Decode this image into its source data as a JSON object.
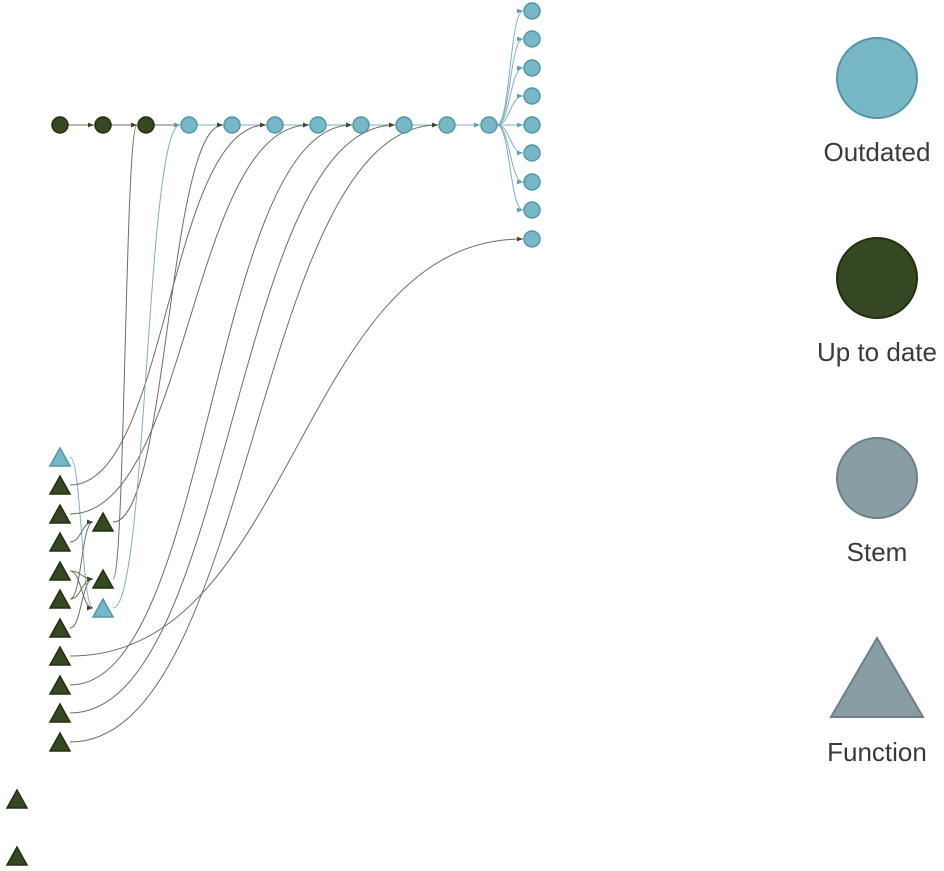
{
  "colors": {
    "outdated": "#78b7c5",
    "outdated_stroke": "#4f97a8",
    "up_to_date": "#354823",
    "up_to_date_stroke": "#22300f",
    "stem": "#899da4",
    "stem_stroke": "#6b8088",
    "edge_dark": "#6d7060",
    "edge_blue": "#7fb0bf"
  },
  "legend": [
    {
      "id": "outdated",
      "label": "Outdated",
      "shape": "circle",
      "status": "outdated"
    },
    {
      "id": "up-to-date",
      "label": "Up to date",
      "shape": "circle",
      "status": "up_to_date"
    },
    {
      "id": "stem",
      "label": "Stem",
      "shape": "circle",
      "status": "stem"
    },
    {
      "id": "function",
      "label": "Function",
      "shape": "triangle",
      "status": "stem"
    }
  ],
  "nodes": [
    {
      "id": "s1",
      "shape": "circle",
      "status": "up_to_date"
    },
    {
      "id": "s2",
      "shape": "circle",
      "status": "up_to_date"
    },
    {
      "id": "s3",
      "shape": "circle",
      "status": "up_to_date"
    },
    {
      "id": "s4",
      "shape": "circle",
      "status": "outdated"
    },
    {
      "id": "s5",
      "shape": "circle",
      "status": "outdated"
    },
    {
      "id": "s6",
      "shape": "circle",
      "status": "outdated"
    },
    {
      "id": "s7",
      "shape": "circle",
      "status": "outdated"
    },
    {
      "id": "s8",
      "shape": "circle",
      "status": "outdated"
    },
    {
      "id": "s9",
      "shape": "circle",
      "status": "outdated"
    },
    {
      "id": "s10",
      "shape": "circle",
      "status": "outdated"
    },
    {
      "id": "s11",
      "shape": "circle",
      "status": "outdated"
    },
    {
      "id": "o1",
      "shape": "circle",
      "status": "outdated"
    },
    {
      "id": "o2",
      "shape": "circle",
      "status": "outdated"
    },
    {
      "id": "o3",
      "shape": "circle",
      "status": "outdated"
    },
    {
      "id": "o4",
      "shape": "circle",
      "status": "outdated"
    },
    {
      "id": "o5",
      "shape": "circle",
      "status": "outdated"
    },
    {
      "id": "o6",
      "shape": "circle",
      "status": "outdated"
    },
    {
      "id": "o7",
      "shape": "circle",
      "status": "outdated"
    },
    {
      "id": "o8",
      "shape": "circle",
      "status": "outdated"
    },
    {
      "id": "o9",
      "shape": "circle",
      "status": "outdated"
    },
    {
      "id": "f0",
      "shape": "triangle",
      "status": "outdated"
    },
    {
      "id": "f1",
      "shape": "triangle",
      "status": "up_to_date"
    },
    {
      "id": "f2",
      "shape": "triangle",
      "status": "up_to_date"
    },
    {
      "id": "f3",
      "shape": "triangle",
      "status": "up_to_date"
    },
    {
      "id": "f4",
      "shape": "triangle",
      "status": "up_to_date"
    },
    {
      "id": "f5",
      "shape": "triangle",
      "status": "up_to_date"
    },
    {
      "id": "f6",
      "shape": "triangle",
      "status": "up_to_date"
    },
    {
      "id": "f7",
      "shape": "triangle",
      "status": "up_to_date"
    },
    {
      "id": "f8",
      "shape": "triangle",
      "status": "up_to_date"
    },
    {
      "id": "f9",
      "shape": "triangle",
      "status": "up_to_date"
    },
    {
      "id": "f10",
      "shape": "triangle",
      "status": "up_to_date"
    },
    {
      "id": "m1",
      "shape": "triangle",
      "status": "up_to_date"
    },
    {
      "id": "m2",
      "shape": "triangle",
      "status": "up_to_date"
    },
    {
      "id": "m3",
      "shape": "triangle",
      "status": "outdated"
    },
    {
      "id": "i1",
      "shape": "triangle",
      "status": "up_to_date"
    },
    {
      "id": "i2",
      "shape": "triangle",
      "status": "up_to_date"
    }
  ],
  "edges": [
    {
      "from": "s1",
      "to": "s2",
      "status": "up_to_date"
    },
    {
      "from": "s2",
      "to": "s3",
      "status": "up_to_date"
    },
    {
      "from": "s3",
      "to": "s4",
      "status": "up_to_date"
    },
    {
      "from": "s4",
      "to": "s5",
      "status": "outdated"
    },
    {
      "from": "s5",
      "to": "s6",
      "status": "outdated"
    },
    {
      "from": "s6",
      "to": "s7",
      "status": "outdated"
    },
    {
      "from": "s7",
      "to": "s8",
      "status": "outdated"
    },
    {
      "from": "s8",
      "to": "s9",
      "status": "outdated"
    },
    {
      "from": "s9",
      "to": "s10",
      "status": "outdated"
    },
    {
      "from": "s10",
      "to": "s11",
      "status": "outdated"
    },
    {
      "from": "s11",
      "to": "o1",
      "status": "outdated"
    },
    {
      "from": "s11",
      "to": "o2",
      "status": "outdated"
    },
    {
      "from": "s11",
      "to": "o3",
      "status": "outdated"
    },
    {
      "from": "s11",
      "to": "o4",
      "status": "outdated"
    },
    {
      "from": "s11",
      "to": "o5",
      "status": "outdated"
    },
    {
      "from": "s11",
      "to": "o6",
      "status": "outdated"
    },
    {
      "from": "s11",
      "to": "o7",
      "status": "outdated"
    },
    {
      "from": "s11",
      "to": "o8",
      "status": "outdated"
    },
    {
      "from": "f0",
      "to": "m3",
      "status": "outdated"
    },
    {
      "from": "f1",
      "to": "s6",
      "status": "up_to_date"
    },
    {
      "from": "f2",
      "to": "s7",
      "status": "up_to_date"
    },
    {
      "from": "f3",
      "to": "m1",
      "status": "up_to_date"
    },
    {
      "from": "f4",
      "to": "m2",
      "status": "up_to_date"
    },
    {
      "from": "f4",
      "to": "m3",
      "status": "up_to_date"
    },
    {
      "from": "f5",
      "to": "m2",
      "status": "up_to_date"
    },
    {
      "from": "f5",
      "to": "m1",
      "status": "up_to_date"
    },
    {
      "from": "f6",
      "to": "m2",
      "status": "up_to_date"
    },
    {
      "from": "f7",
      "to": "o9",
      "status": "up_to_date"
    },
    {
      "from": "f8",
      "to": "s8",
      "status": "up_to_date"
    },
    {
      "from": "f9",
      "to": "s9",
      "status": "up_to_date"
    },
    {
      "from": "f10",
      "to": "s10",
      "status": "up_to_date"
    },
    {
      "from": "m1",
      "to": "s5",
      "status": "up_to_date"
    },
    {
      "from": "m2",
      "to": "s3",
      "status": "up_to_date"
    },
    {
      "from": "m3",
      "to": "s4",
      "status": "outdated"
    }
  ]
}
